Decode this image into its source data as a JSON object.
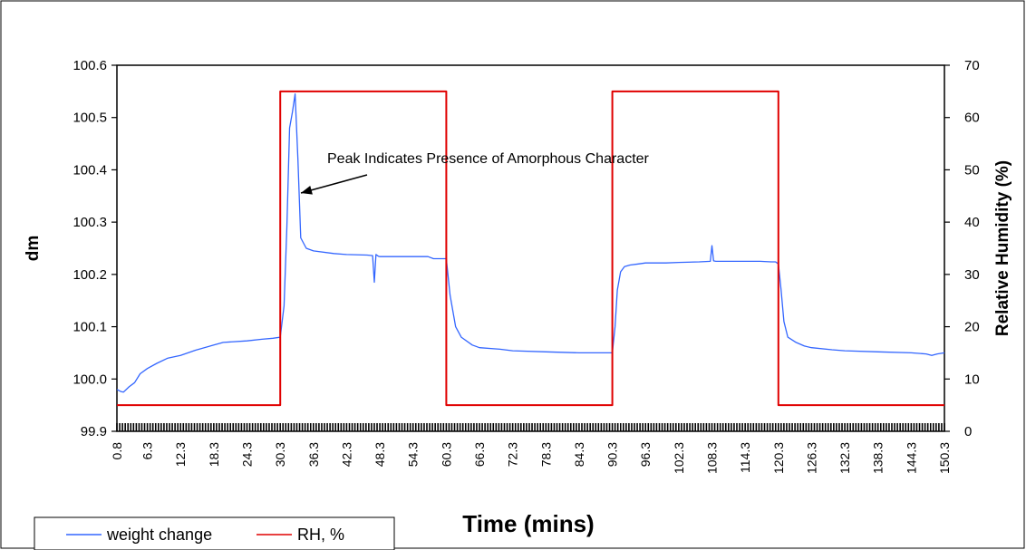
{
  "chart_data": {
    "type": "line",
    "xlabel": "Time (mins)",
    "ylabel": "dm",
    "y2label": "Relative Humidity (%)",
    "xlim": [
      0.8,
      150.3
    ],
    "ylim": [
      99.9,
      100.6
    ],
    "y2lim": [
      0,
      70
    ],
    "y_ticks": [
      "99.9",
      "100.0",
      "100.1",
      "100.2",
      "100.3",
      "100.4",
      "100.5",
      "100.6"
    ],
    "y2_ticks": [
      "0",
      "10",
      "20",
      "30",
      "40",
      "50",
      "60",
      "70"
    ],
    "x_ticks": [
      "0.8",
      "6.3",
      "12.3",
      "18.3",
      "24.3",
      "30.3",
      "36.3",
      "42.3",
      "48.3",
      "54.3",
      "60.3",
      "66.3",
      "72.3",
      "78.3",
      "84.3",
      "90.3",
      "96.3",
      "102.3",
      "108.3",
      "114.3",
      "120.3",
      "126.3",
      "132.3",
      "138.3",
      "144.3",
      "150.3"
    ],
    "grid": false,
    "legend_position": "bottom-left",
    "series": [
      {
        "name": "weight change",
        "color": "#3366ff",
        "axis": "left",
        "x": [
          0.8,
          1.5,
          2.0,
          3.0,
          4.0,
          5.0,
          6.3,
          8.0,
          10.0,
          12.3,
          15.0,
          18.3,
          20.0,
          24.3,
          27.0,
          29.0,
          30.3,
          31.0,
          31.5,
          32.0,
          32.5,
          33.0,
          33.5,
          34.0,
          35.0,
          36.3,
          40.0,
          42.3,
          46.0,
          47.0,
          47.3,
          47.6,
          48.0,
          48.3,
          50.0,
          54.3,
          57.0,
          58.0,
          60.3,
          61.0,
          62.0,
          63.0,
          65.0,
          66.3,
          70.0,
          72.3,
          78.3,
          84.3,
          87.0,
          89.5,
          90.3,
          90.8,
          91.2,
          91.8,
          92.5,
          93.5,
          95.0,
          96.3,
          100.0,
          102.3,
          106.0,
          108.0,
          108.3,
          108.6,
          109.0,
          114.3,
          117.0,
          119.0,
          119.8,
          120.3,
          120.8,
          121.3,
          122.0,
          123.5,
          125.0,
          126.3,
          130.0,
          132.3,
          138.3,
          144.3,
          147.0,
          148.0,
          149.0,
          150.3
        ],
        "y": [
          99.98,
          99.976,
          99.975,
          99.985,
          99.993,
          100.01,
          100.02,
          100.03,
          100.04,
          100.045,
          100.055,
          100.065,
          100.07,
          100.073,
          100.076,
          100.078,
          100.08,
          100.14,
          100.29,
          100.48,
          100.51,
          100.545,
          100.42,
          100.27,
          100.25,
          100.245,
          100.24,
          100.238,
          100.237,
          100.236,
          100.185,
          100.238,
          100.235,
          100.234,
          100.234,
          100.234,
          100.234,
          100.23,
          100.23,
          100.16,
          100.1,
          100.08,
          100.065,
          100.06,
          100.057,
          100.054,
          100.052,
          100.05,
          100.05,
          100.05,
          100.05,
          100.1,
          100.17,
          100.205,
          100.215,
          100.218,
          100.22,
          100.222,
          100.222,
          100.223,
          100.224,
          100.225,
          100.255,
          100.226,
          100.225,
          100.225,
          100.225,
          100.224,
          100.224,
          100.22,
          100.17,
          100.11,
          100.08,
          100.07,
          100.063,
          100.06,
          100.056,
          100.054,
          100.052,
          100.05,
          100.048,
          100.045,
          100.048,
          100.05
        ]
      },
      {
        "name": "RH, %",
        "color": "#e00000",
        "axis": "right",
        "x": [
          0.8,
          30.3,
          30.3,
          60.3,
          60.3,
          90.3,
          90.3,
          120.3,
          120.3,
          150.3
        ],
        "y": [
          5,
          5,
          65,
          65,
          5,
          5,
          65,
          65,
          5,
          5
        ]
      }
    ],
    "annotations": [
      {
        "text": "Peak Indicates Presence of Amorphous Character",
        "target_x": 32.3,
        "target_y": 100.35
      }
    ]
  }
}
